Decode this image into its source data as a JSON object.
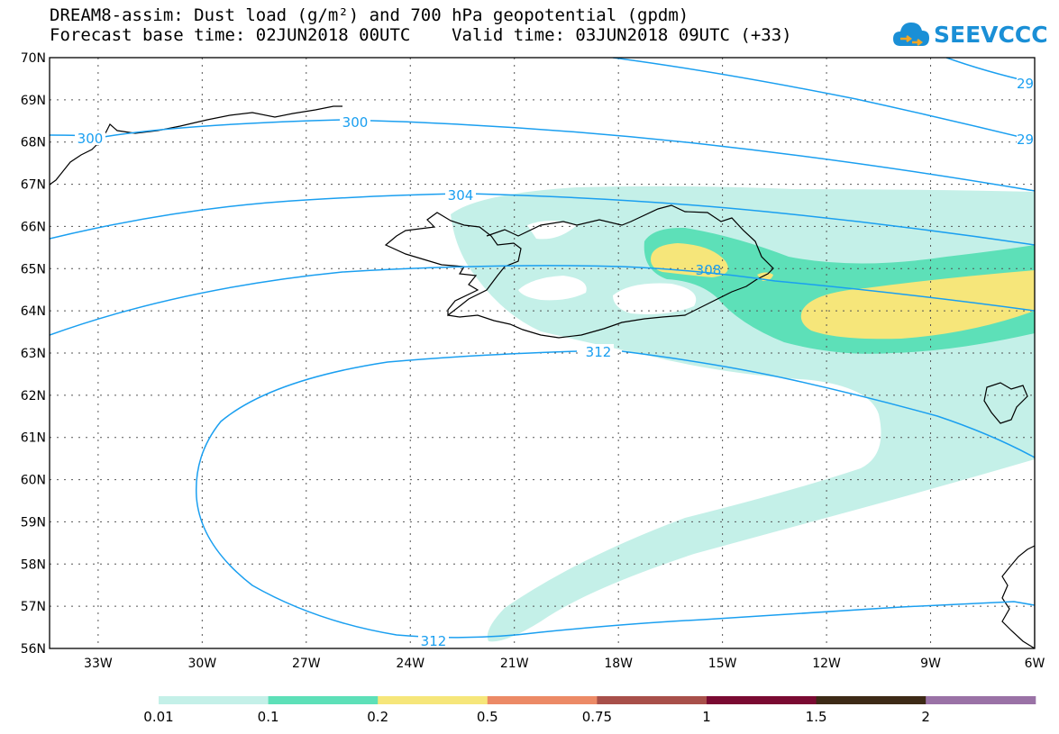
{
  "header": {
    "line1": "DREAM8-assim: Dust load (g/m²) and 700 hPa geopotential (gpdm)",
    "line2": "Forecast base time: 02JUN2018 00UTC    Valid time: 03JUN2018 09UTC (+33)"
  },
  "logo": {
    "text": "SEEVCCC",
    "icon": "cloud-icon"
  },
  "map": {
    "lat_labels": [
      "56N",
      "57N",
      "58N",
      "59N",
      "60N",
      "61N",
      "62N",
      "63N",
      "64N",
      "65N",
      "66N",
      "67N",
      "68N",
      "69N",
      "70N"
    ],
    "lon_labels": [
      "33W",
      "30W",
      "27W",
      "24W",
      "21W",
      "18W",
      "15W",
      "12W",
      "9W",
      "6W"
    ],
    "contours": [
      {
        "value": "300",
        "labels": [
          "300",
          "300"
        ]
      },
      {
        "value": "304",
        "labels": [
          "304"
        ]
      },
      {
        "value": "308",
        "labels": [
          "308"
        ]
      },
      {
        "value": "312",
        "labels": [
          "312",
          "312"
        ]
      },
      {
        "value": "29",
        "labels": [
          "29",
          "29"
        ]
      }
    ],
    "colors": {
      "contour": "#1a9ff0",
      "coast": "#000000",
      "grid": "#555555"
    }
  },
  "colorbar": {
    "ticks": [
      "0.01",
      "0.1",
      "0.2",
      "0.5",
      "0.75",
      "1",
      "1.5",
      "2"
    ],
    "colors": [
      "#c4f0e8",
      "#5de0b8",
      "#f6e67a",
      "#ec8a66",
      "#a8504a",
      "#7a0a32",
      "#3d2a16",
      "#9a72a6"
    ]
  }
}
